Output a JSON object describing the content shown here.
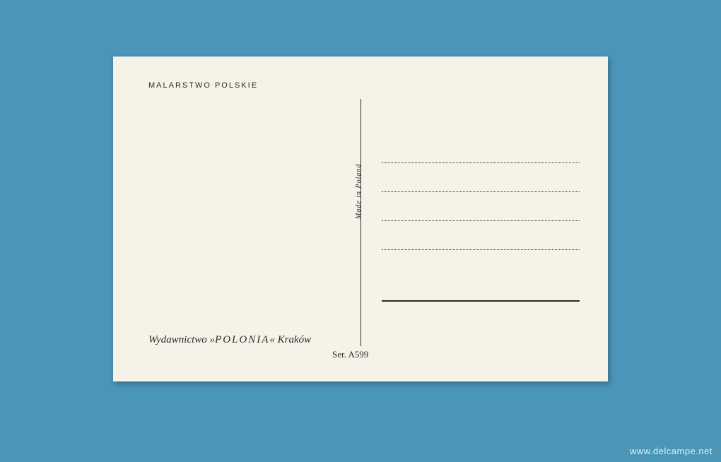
{
  "postcard": {
    "header": "MALARSTWO POLSKIE",
    "made_in": "Made in Poland",
    "publisher_prefix": "Wydawnictwo »",
    "publisher_brand": "POLONIA",
    "publisher_suffix": "« Kraków",
    "series": "Ser. A599"
  },
  "watermark": "www.delcampe.net",
  "colors": {
    "background": "#4a96b8",
    "card": "#f5f2e8",
    "ink": "#2a2a2a"
  }
}
